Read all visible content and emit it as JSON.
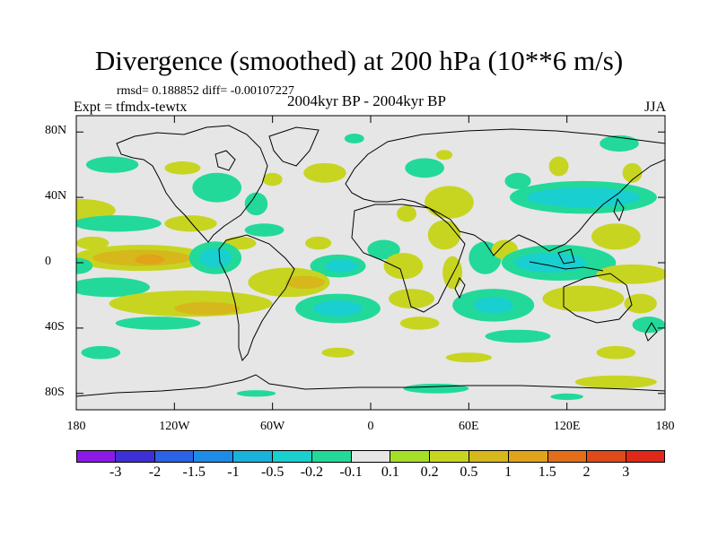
{
  "title": "Divergence (smoothed) at 200 hPa (10**6 m/s)",
  "stats": "rmsd= 0.188852 diff= -0.00107227",
  "experiment": "Expt = tfmdx-tewtx",
  "period": "2004kyr BP - 2004kyr BP",
  "season": "JJA",
  "map": {
    "projection": "cylindrical equidistant",
    "lon_range": [
      -180,
      180
    ],
    "lat_range": [
      -90,
      90
    ],
    "y_ticks": [
      {
        "label": "80N",
        "lat": 80
      },
      {
        "label": "40N",
        "lat": 40
      },
      {
        "label": "0",
        "lat": 0
      },
      {
        "label": "40S",
        "lat": -40
      },
      {
        "label": "80S",
        "lat": -80
      }
    ],
    "x_ticks": [
      {
        "label": "180",
        "lon": -180
      },
      {
        "label": "120W",
        "lon": -120
      },
      {
        "label": "60W",
        "lon": -60
      },
      {
        "label": "0",
        "lon": 0
      },
      {
        "label": "60E",
        "lon": 60
      },
      {
        "label": "120E",
        "lon": 120
      },
      {
        "label": "180",
        "lon": 180
      }
    ],
    "background_color": "#e6e6e6",
    "features": [
      {
        "level": -0.2,
        "lon": 152,
        "lat": 73,
        "rx": 12,
        "ry": 5
      },
      {
        "level": -0.2,
        "lon": -158,
        "lat": 60,
        "rx": 16,
        "ry": 5
      },
      {
        "level": -0.2,
        "lon": -94,
        "lat": 46,
        "rx": 15,
        "ry": 9
      },
      {
        "level": -0.2,
        "lon": -70,
        "lat": 36,
        "rx": 7,
        "ry": 7
      },
      {
        "level": -0.2,
        "lon": -10,
        "lat": 76,
        "rx": 6,
        "ry": 3
      },
      {
        "level": -0.2,
        "lon": 33,
        "lat": 58,
        "rx": 12,
        "ry": 6
      },
      {
        "level": 0.2,
        "lon": 45,
        "lat": 66,
        "rx": 5,
        "ry": 3
      },
      {
        "level": 0.2,
        "lon": -28,
        "lat": 55,
        "rx": 13,
        "ry": 6
      },
      {
        "level": 0.2,
        "lon": -115,
        "lat": 58,
        "rx": 11,
        "ry": 4
      },
      {
        "level": 0.2,
        "lon": -60,
        "lat": 51,
        "rx": 6,
        "ry": 4
      },
      {
        "level": 0.2,
        "lon": 115,
        "lat": 59,
        "rx": 6,
        "ry": 6
      },
      {
        "level": 0.2,
        "lon": 160,
        "lat": 55,
        "rx": 6,
        "ry": 6
      },
      {
        "level": -0.2,
        "lon": 90,
        "lat": 50,
        "rx": 8,
        "ry": 5
      },
      {
        "level": -0.2,
        "lon": 130,
        "lat": 40,
        "rx": 45,
        "ry": 10
      },
      {
        "level": -0.5,
        "lon": 130,
        "lat": 40,
        "rx": 35,
        "ry": 6
      },
      {
        "level": 0.2,
        "lon": 48,
        "lat": 37,
        "rx": 15,
        "ry": 10
      },
      {
        "level": 0.2,
        "lon": 22,
        "lat": 30,
        "rx": 6,
        "ry": 5
      },
      {
        "level": 0.2,
        "lon": -178,
        "lat": 32,
        "rx": 22,
        "ry": 7
      },
      {
        "level": -0.2,
        "lon": -155,
        "lat": 24,
        "rx": 27,
        "ry": 5
      },
      {
        "level": 0.2,
        "lon": -110,
        "lat": 24,
        "rx": 16,
        "ry": 5
      },
      {
        "level": -0.2,
        "lon": -65,
        "lat": 20,
        "rx": 12,
        "ry": 4
      },
      {
        "level": 0.2,
        "lon": -80,
        "lat": 12,
        "rx": 10,
        "ry": 4
      },
      {
        "level": 0.2,
        "lon": -32,
        "lat": 12,
        "rx": 8,
        "ry": 4
      },
      {
        "level": 0.2,
        "lon": -170,
        "lat": 12,
        "rx": 10,
        "ry": 4
      },
      {
        "level": -0.2,
        "lon": 8,
        "lat": 8,
        "rx": 10,
        "ry": 6
      },
      {
        "level": 0.2,
        "lon": 45,
        "lat": 17,
        "rx": 10,
        "ry": 9
      },
      {
        "level": 0.2,
        "lon": 150,
        "lat": 16,
        "rx": 15,
        "ry": 8
      },
      {
        "level": 0.2,
        "lon": -140,
        "lat": 3,
        "rx": 42,
        "ry": 8
      },
      {
        "level": 0.5,
        "lon": -140,
        "lat": 3,
        "rx": 30,
        "ry": 5
      },
      {
        "level": 1.0,
        "lon": -135,
        "lat": 2,
        "rx": 9,
        "ry": 3
      },
      {
        "level": -0.2,
        "lon": -180,
        "lat": -2,
        "rx": 10,
        "ry": 5
      },
      {
        "level": -0.2,
        "lon": -95,
        "lat": 3,
        "rx": 16,
        "ry": 10
      },
      {
        "level": -0.5,
        "lon": -95,
        "lat": 3,
        "rx": 10,
        "ry": 6
      },
      {
        "level": -0.2,
        "lon": -20,
        "lat": -2,
        "rx": 17,
        "ry": 7
      },
      {
        "level": -0.5,
        "lon": -18,
        "lat": -2,
        "rx": 10,
        "ry": 4
      },
      {
        "level": 0.2,
        "lon": 20,
        "lat": -2,
        "rx": 12,
        "ry": 8
      },
      {
        "level": 0.2,
        "lon": 50,
        "lat": -6,
        "rx": 6,
        "ry": 10
      },
      {
        "level": -0.2,
        "lon": 70,
        "lat": 3,
        "rx": 10,
        "ry": 10
      },
      {
        "level": 0.2,
        "lon": 82,
        "lat": 8,
        "rx": 8,
        "ry": 6
      },
      {
        "level": -0.2,
        "lon": 115,
        "lat": 0,
        "rx": 35,
        "ry": 11
      },
      {
        "level": -0.5,
        "lon": 110,
        "lat": 0,
        "rx": 22,
        "ry": 6
      },
      {
        "level": 0.2,
        "lon": 160,
        "lat": -7,
        "rx": 22,
        "ry": 6
      },
      {
        "level": -0.2,
        "lon": -160,
        "lat": -15,
        "rx": 25,
        "ry": 6
      },
      {
        "level": 0.2,
        "lon": -110,
        "lat": -25,
        "rx": 50,
        "ry": 8
      },
      {
        "level": 0.5,
        "lon": -100,
        "lat": -28,
        "rx": 20,
        "ry": 4
      },
      {
        "level": -0.2,
        "lon": -130,
        "lat": -37,
        "rx": 26,
        "ry": 4
      },
      {
        "level": 0.2,
        "lon": -50,
        "lat": -12,
        "rx": 25,
        "ry": 9
      },
      {
        "level": 0.5,
        "lon": -40,
        "lat": -12,
        "rx": 12,
        "ry": 4
      },
      {
        "level": -0.2,
        "lon": -20,
        "lat": -28,
        "rx": 26,
        "ry": 9
      },
      {
        "level": -0.5,
        "lon": -20,
        "lat": -28,
        "rx": 15,
        "ry": 5
      },
      {
        "level": 0.2,
        "lon": 25,
        "lat": -22,
        "rx": 14,
        "ry": 6
      },
      {
        "level": -0.2,
        "lon": 75,
        "lat": -26,
        "rx": 25,
        "ry": 10
      },
      {
        "level": -0.5,
        "lon": 75,
        "lat": -26,
        "rx": 12,
        "ry": 5
      },
      {
        "level": 0.2,
        "lon": 130,
        "lat": -22,
        "rx": 25,
        "ry": 8
      },
      {
        "level": 0.2,
        "lon": 165,
        "lat": -25,
        "rx": 10,
        "ry": 6
      },
      {
        "level": -0.2,
        "lon": 170,
        "lat": -38,
        "rx": 10,
        "ry": 5
      },
      {
        "level": -0.2,
        "lon": 90,
        "lat": -45,
        "rx": 20,
        "ry": 4
      },
      {
        "level": 0.2,
        "lon": 30,
        "lat": -37,
        "rx": 12,
        "ry": 4
      },
      {
        "level": -0.2,
        "lon": -165,
        "lat": -55,
        "rx": 12,
        "ry": 4
      },
      {
        "level": 0.2,
        "lon": -20,
        "lat": -55,
        "rx": 10,
        "ry": 3
      },
      {
        "level": 0.2,
        "lon": 60,
        "lat": -58,
        "rx": 14,
        "ry": 3
      },
      {
        "level": 0.2,
        "lon": 150,
        "lat": -55,
        "rx": 12,
        "ry": 4
      },
      {
        "level": 0.2,
        "lon": 150,
        "lat": -73,
        "rx": 25,
        "ry": 4
      },
      {
        "level": -0.2,
        "lon": 40,
        "lat": -77,
        "rx": 20,
        "ry": 3
      },
      {
        "level": -0.2,
        "lon": -70,
        "lat": -80,
        "rx": 12,
        "ry": 2
      },
      {
        "level": -0.2,
        "lon": 120,
        "lat": -82,
        "rx": 10,
        "ry": 2
      }
    ]
  },
  "colorbar": {
    "colors": [
      "#8c19e8",
      "#3e2fd6",
      "#2b62e6",
      "#1d8ce6",
      "#19b2db",
      "#19cfcf",
      "#22d99a",
      "#e6e6e6",
      "#a5e028",
      "#c7d521",
      "#d6b81c",
      "#e0a319",
      "#e36d19",
      "#e04a19",
      "#e02819"
    ],
    "labels": [
      "-3",
      "-2",
      "-1.5",
      "-1",
      "-0.5",
      "-0.2",
      "-0.1",
      "0.1",
      "0.2",
      "0.5",
      "1",
      "1.5",
      "2",
      "3"
    ],
    "levels": [
      -3,
      -2,
      -1.5,
      -1,
      -0.5,
      -0.2,
      -0.1,
      0.1,
      0.2,
      0.5,
      1,
      1.5,
      2,
      3
    ]
  }
}
